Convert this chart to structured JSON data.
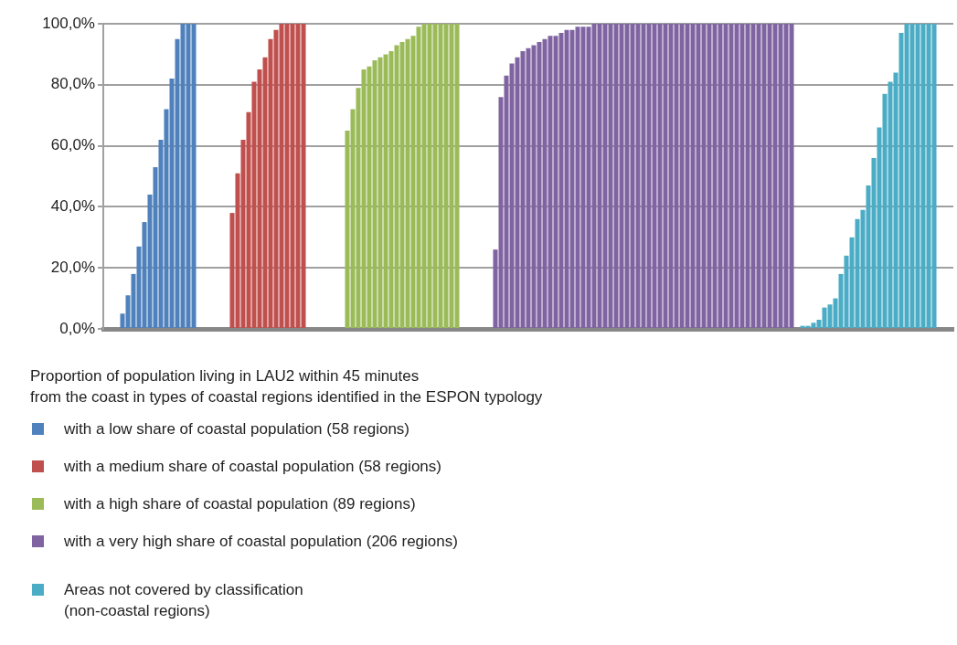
{
  "chart_data": {
    "type": "bar",
    "legend_title": "Proportion of population living in LAU2 within 45 minutes\nfrom the coast in types of coastal regions identified in the ESPON typology",
    "ylim": [
      0,
      100
    ],
    "yticks": [
      {
        "value": 0,
        "label": "0,0%"
      },
      {
        "value": 20,
        "label": "20,0%"
      },
      {
        "value": 40,
        "label": "40,0%"
      },
      {
        "value": 60,
        "label": "60,0%"
      },
      {
        "value": 80,
        "label": "80,0%"
      },
      {
        "value": 100,
        "label": "100,0%"
      }
    ],
    "grid": "y",
    "tick_labels": "y",
    "legend": "bottom",
    "categories": [
      null,
      null,
      null,
      null,
      null,
      null,
      null,
      null,
      null,
      null,
      null,
      null,
      null,
      null,
      null,
      null,
      null,
      null,
      null,
      null,
      null,
      null,
      null,
      null,
      null,
      null,
      null,
      null,
      null,
      null,
      null,
      null,
      null,
      null,
      null,
      null,
      null,
      null,
      null,
      null,
      null,
      null,
      null,
      null,
      null,
      null,
      null,
      null,
      null,
      null,
      null,
      null,
      null,
      null,
      null,
      null,
      null,
      null,
      null,
      null,
      null,
      null,
      null,
      null,
      null,
      null,
      null,
      null,
      null,
      null,
      null,
      null,
      null,
      null,
      null,
      null,
      null,
      null,
      null,
      null,
      null,
      null,
      null,
      null,
      null,
      null,
      null,
      null,
      null,
      null,
      null,
      null,
      null,
      null,
      null,
      null,
      null,
      null,
      null,
      null,
      null,
      null,
      null,
      null,
      null,
      null,
      null,
      null,
      null,
      null,
      null,
      null,
      null,
      null,
      null,
      null,
      null,
      null,
      null,
      null,
      null,
      null,
      null,
      null,
      null,
      null,
      null,
      null,
      null,
      null,
      null,
      null,
      null,
      null,
      null,
      null,
      null,
      null,
      null,
      null,
      null,
      null,
      null,
      null,
      null,
      null,
      null,
      null,
      null,
      null,
      null,
      null,
      null,
      null,
      null
    ],
    "series": [
      {
        "name": "with a low share of coastal population (58 regions)",
        "color": "#4f81bd",
        "values": [
          null,
          null,
          null,
          5,
          11,
          18,
          27,
          35,
          44,
          53,
          62,
          72,
          82,
          95,
          100,
          100,
          100,
          null,
          null,
          null,
          null,
          null,
          null,
          null,
          null,
          null,
          null,
          null,
          null,
          null,
          null,
          null,
          null,
          null,
          null,
          null,
          null,
          null,
          null,
          null,
          null,
          null,
          null,
          null,
          null,
          null,
          null,
          null,
          null,
          null,
          null,
          null,
          null,
          null,
          null,
          null,
          null,
          null,
          null,
          null,
          null,
          null,
          null,
          null,
          null,
          null,
          null,
          null,
          null,
          null,
          null,
          null,
          null,
          null,
          null,
          null,
          null,
          null,
          null,
          null,
          null,
          null,
          null,
          null,
          null,
          null,
          null,
          null,
          null,
          null,
          null,
          null,
          null,
          null,
          null,
          null,
          null,
          null,
          null,
          null,
          null,
          null,
          null,
          null,
          null,
          null,
          null,
          null,
          null,
          null,
          null,
          null,
          null,
          null,
          null,
          null,
          null,
          null,
          null,
          null,
          null,
          null,
          null,
          null,
          null,
          null,
          null,
          null,
          null,
          null,
          null,
          null,
          null,
          null,
          null,
          null,
          null,
          null,
          null,
          null,
          null,
          null,
          null,
          null,
          null,
          null,
          null,
          null,
          null,
          null,
          null,
          null,
          null,
          null,
          null
        ]
      },
      {
        "name": "with a medium  share of coastal population (58 regions)",
        "color": "#c0504d",
        "values": [
          null,
          null,
          null,
          null,
          null,
          null,
          null,
          null,
          null,
          null,
          null,
          null,
          null,
          null,
          null,
          null,
          null,
          null,
          null,
          null,
          null,
          null,
          null,
          38,
          51,
          62,
          71,
          81,
          85,
          89,
          95,
          98,
          100,
          100,
          100,
          100,
          100,
          null,
          null,
          null,
          null,
          null,
          null,
          null,
          null,
          null,
          null,
          null,
          null,
          null,
          null,
          null,
          null,
          null,
          null,
          null,
          null,
          null,
          null,
          null,
          null,
          null,
          null,
          null,
          null,
          null,
          null,
          null,
          null,
          null,
          null,
          null,
          null,
          null,
          null,
          null,
          null,
          null,
          null,
          null,
          null,
          null,
          null,
          null,
          null,
          null,
          null,
          null,
          null,
          null,
          null,
          null,
          null,
          null,
          null,
          null,
          null,
          null,
          null,
          null,
          null,
          null,
          null,
          null,
          null,
          null,
          null,
          null,
          null,
          null,
          null,
          null,
          null,
          null,
          null,
          null,
          null,
          null,
          null,
          null,
          null,
          null,
          null,
          null,
          null,
          null,
          null,
          null,
          null,
          null,
          null,
          null,
          null,
          null,
          null,
          null,
          null,
          null,
          null,
          null,
          null,
          null,
          null,
          null,
          null,
          null,
          null,
          null,
          null,
          null,
          null,
          null,
          null,
          null,
          null
        ]
      },
      {
        "name": "with a high  share of coastal population (89 regions)",
        "color": "#9bbb59",
        "values": [
          null,
          null,
          null,
          null,
          null,
          null,
          null,
          null,
          null,
          null,
          null,
          null,
          null,
          null,
          null,
          null,
          null,
          null,
          null,
          null,
          null,
          null,
          null,
          null,
          null,
          null,
          null,
          null,
          null,
          null,
          null,
          null,
          null,
          null,
          null,
          null,
          null,
          null,
          null,
          null,
          null,
          null,
          null,
          null,
          65,
          72,
          79,
          85,
          86,
          88,
          89,
          90,
          91,
          93,
          94,
          95,
          96,
          99,
          100,
          100,
          100,
          100,
          100,
          100,
          100,
          null,
          null,
          null,
          null,
          null,
          null,
          null,
          null,
          null,
          null,
          null,
          null,
          null,
          null,
          null,
          null,
          null,
          null,
          null,
          null,
          null,
          null,
          null,
          null,
          null,
          null,
          null,
          null,
          null,
          null,
          null,
          null,
          null,
          null,
          null,
          null,
          null,
          null,
          null,
          null,
          null,
          null,
          null,
          null,
          null,
          null,
          null,
          null,
          null,
          null,
          null,
          null,
          null,
          null,
          null,
          null,
          null,
          null,
          null,
          null,
          null,
          null,
          null,
          null,
          null,
          null,
          null,
          null,
          null,
          null,
          null,
          null,
          null,
          null,
          null,
          null,
          null,
          null,
          null,
          null,
          null,
          null,
          null,
          null,
          null,
          null,
          null,
          null,
          null,
          null
        ]
      },
      {
        "name": "with a very high  share of coastal population (206 regions)",
        "color": "#8064a2",
        "values": [
          null,
          null,
          null,
          null,
          null,
          null,
          null,
          null,
          null,
          null,
          null,
          null,
          null,
          null,
          null,
          null,
          null,
          null,
          null,
          null,
          null,
          null,
          null,
          null,
          null,
          null,
          null,
          null,
          null,
          null,
          null,
          null,
          null,
          null,
          null,
          null,
          null,
          null,
          null,
          null,
          null,
          null,
          null,
          null,
          null,
          null,
          null,
          null,
          null,
          null,
          null,
          null,
          null,
          null,
          null,
          null,
          null,
          null,
          null,
          null,
          null,
          null,
          null,
          null,
          null,
          null,
          null,
          null,
          null,
          null,
          null,
          26,
          76,
          83,
          87,
          89,
          91,
          92,
          93,
          94,
          95,
          96,
          96,
          97,
          98,
          98,
          99,
          99,
          99,
          100,
          100,
          100,
          100,
          100,
          100,
          100,
          100,
          100,
          100,
          100,
          100,
          100,
          100,
          100,
          100,
          100,
          100,
          100,
          100,
          100,
          100,
          100,
          100,
          100,
          100,
          100,
          100,
          100,
          100,
          100,
          100,
          100,
          100,
          100,
          100,
          100,
          null,
          null,
          null,
          null,
          null,
          null,
          null,
          null,
          null,
          null,
          null,
          null,
          null,
          null,
          null,
          null,
          null,
          null,
          null,
          null,
          null,
          null,
          null,
          null,
          null,
          null,
          null,
          null,
          null
        ]
      },
      {
        "name": "Areas not covered by classification\n(non-coastal regions)",
        "color": "#4bacc6",
        "values": [
          null,
          null,
          null,
          null,
          null,
          null,
          null,
          null,
          null,
          null,
          null,
          null,
          null,
          null,
          null,
          null,
          null,
          null,
          null,
          null,
          null,
          null,
          null,
          null,
          null,
          null,
          null,
          null,
          null,
          null,
          null,
          null,
          null,
          null,
          null,
          null,
          null,
          null,
          null,
          null,
          null,
          null,
          null,
          null,
          null,
          null,
          null,
          null,
          null,
          null,
          null,
          null,
          null,
          null,
          null,
          null,
          null,
          null,
          null,
          null,
          null,
          null,
          null,
          null,
          null,
          null,
          null,
          null,
          null,
          null,
          null,
          null,
          null,
          null,
          null,
          null,
          null,
          null,
          null,
          null,
          null,
          null,
          null,
          null,
          null,
          null,
          null,
          null,
          null,
          null,
          null,
          null,
          null,
          null,
          null,
          null,
          null,
          null,
          null,
          null,
          null,
          null,
          null,
          null,
          null,
          null,
          null,
          null,
          null,
          null,
          null,
          null,
          null,
          null,
          null,
          null,
          null,
          null,
          null,
          null,
          null,
          null,
          null,
          null,
          null,
          null,
          null,
          1,
          1,
          2,
          3,
          7,
          8,
          10,
          18,
          24,
          30,
          36,
          39,
          47,
          56,
          66,
          77,
          81,
          84,
          97,
          100,
          100,
          100,
          100,
          100,
          100,
          null,
          null,
          null
        ]
      }
    ]
  }
}
